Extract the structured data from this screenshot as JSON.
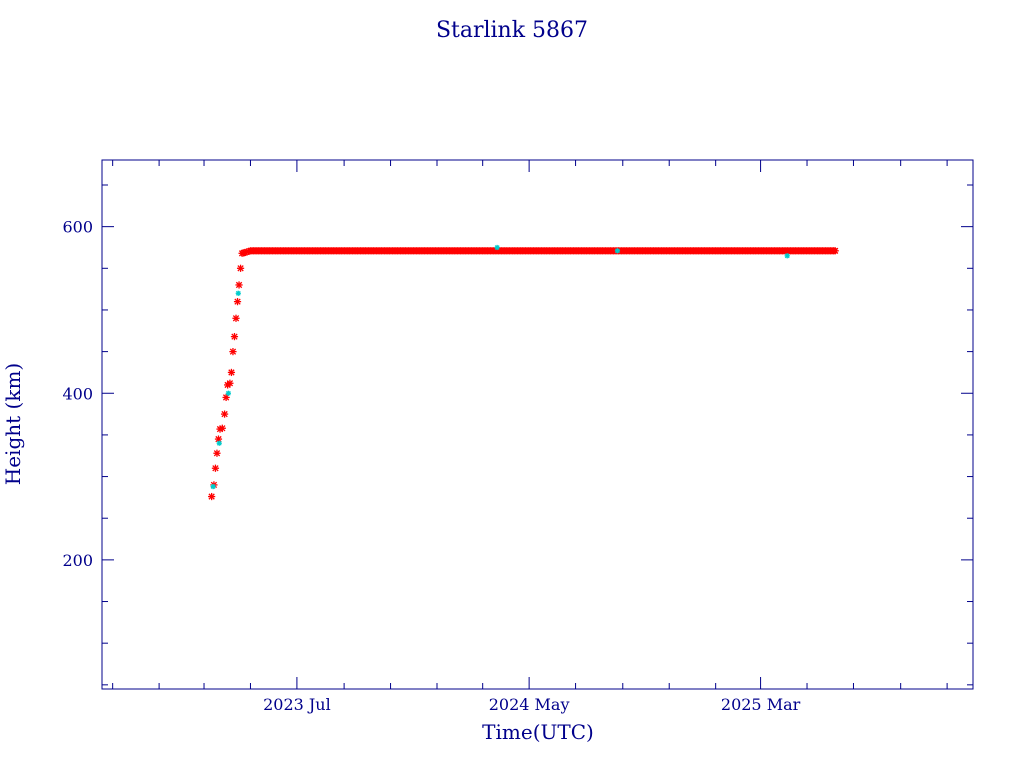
{
  "chart_data": {
    "type": "scatter",
    "title": "Starlink 5867",
    "xlabel": "Time(UTC)",
    "ylabel": "Height (km)",
    "x_tick_labels": [
      "2023 Jul",
      "2024 May",
      "2025 Mar"
    ],
    "x_tick_dates": [
      "2023-07-01",
      "2024-05-01",
      "2025-03-01"
    ],
    "xlim": [
      "2022-10-18",
      "2025-12-05"
    ],
    "y_ticks": [
      200,
      400,
      600
    ],
    "ylim": [
      45,
      680
    ],
    "grid": false,
    "colors": {
      "frame": "#00008b",
      "text": "#00008b",
      "main_series": "#ff0000",
      "secondary_series": "#00cccc"
    },
    "series": [
      {
        "name": "",
        "color": "#ff0000",
        "points": [
          [
            "2023-03-11",
            276
          ],
          [
            "2023-03-14",
            290
          ],
          [
            "2023-03-16",
            310
          ],
          [
            "2023-03-18",
            328
          ],
          [
            "2023-03-20",
            345
          ],
          [
            "2023-03-22",
            357
          ],
          [
            "2023-03-25",
            358
          ],
          [
            "2023-03-28",
            375
          ],
          [
            "2023-03-30",
            395
          ],
          [
            "2023-04-01",
            410
          ],
          [
            "2023-04-04",
            412
          ],
          [
            "2023-04-06",
            425
          ],
          [
            "2023-04-08",
            450
          ],
          [
            "2023-04-10",
            468
          ],
          [
            "2023-04-12",
            490
          ],
          [
            "2023-04-14",
            510
          ],
          [
            "2023-04-16",
            530
          ],
          [
            "2023-04-18",
            550
          ],
          [
            "2023-04-20",
            568
          ],
          [
            "2023-04-24",
            569
          ],
          [
            "2023-05-01",
            571
          ],
          [
            "2023-06-01",
            571
          ],
          [
            "2023-08-01",
            571
          ],
          [
            "2023-10-01",
            571
          ],
          [
            "2023-12-01",
            571
          ],
          [
            "2024-02-01",
            571
          ],
          [
            "2024-04-01",
            571
          ],
          [
            "2024-06-01",
            571
          ],
          [
            "2024-08-01",
            571
          ],
          [
            "2024-10-01",
            571
          ],
          [
            "2024-12-01",
            571
          ],
          [
            "2025-02-01",
            571
          ],
          [
            "2025-04-01",
            571
          ],
          [
            "2025-06-07",
            571
          ]
        ]
      },
      {
        "name": "",
        "color": "#00cccc",
        "points": [
          [
            "2023-03-13",
            288
          ],
          [
            "2023-03-21",
            340
          ],
          [
            "2023-04-02",
            400
          ],
          [
            "2023-04-15",
            520
          ],
          [
            "2024-03-20",
            575
          ],
          [
            "2024-08-25",
            571
          ],
          [
            "2025-04-05",
            565
          ]
        ]
      }
    ]
  }
}
